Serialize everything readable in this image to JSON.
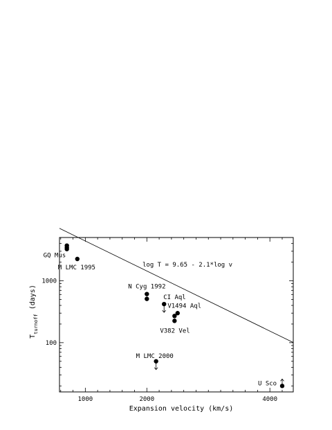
{
  "chart_data": {
    "type": "scatter",
    "title": "",
    "xlabel": "Expansion velocity (km/s)",
    "ylabel": "T",
    "ylabel_subscript": "turnoff",
    "ylabel_suffix": " (days)",
    "x_scale": "linear",
    "y_scale": "log",
    "xlim": [
      580,
      4380
    ],
    "ylim": [
      16,
      5000
    ],
    "x_ticks": [
      {
        "value": 1000,
        "label": "1000"
      },
      {
        "value": 2000,
        "label": "2000"
      },
      {
        "value": 4000,
        "label": "4000"
      }
    ],
    "x_minor_step": 200,
    "y_ticks": [
      {
        "value": 100,
        "label": "100"
      },
      {
        "value": 1000,
        "label": "1000"
      }
    ],
    "grid": false,
    "annotation": "log T = 9.65 - 2.1*log v",
    "fit_line": {
      "intercept": 9.65,
      "slope": -2.1
    },
    "points": [
      {
        "x": 700,
        "y": 3700,
        "label": "",
        "limit": ""
      },
      {
        "x": 700,
        "y": 3450,
        "label": "",
        "limit": ""
      },
      {
        "x": 700,
        "y": 3250,
        "label": "GQ Mus",
        "limit": ""
      },
      {
        "x": 870,
        "y": 2250,
        "label": "M LMC 1995",
        "limit": ""
      },
      {
        "x": 2000,
        "y": 610,
        "label": "N Cyg 1992",
        "limit": ""
      },
      {
        "x": 2000,
        "y": 510,
        "label": "",
        "limit": ""
      },
      {
        "x": 2280,
        "y": 420,
        "label": "CI Aql",
        "limit": "upper"
      },
      {
        "x": 2450,
        "y": 270,
        "label": "V1494 Aql",
        "limit": ""
      },
      {
        "x": 2500,
        "y": 300,
        "label": "",
        "limit": ""
      },
      {
        "x": 2450,
        "y": 225,
        "label": "V382 Vel",
        "limit": ""
      },
      {
        "x": 2150,
        "y": 50,
        "label": "M LMC 2000",
        "limit": "upper"
      },
      {
        "x": 4200,
        "y": 20,
        "label": "U Sco",
        "limit": "lower"
      }
    ]
  }
}
